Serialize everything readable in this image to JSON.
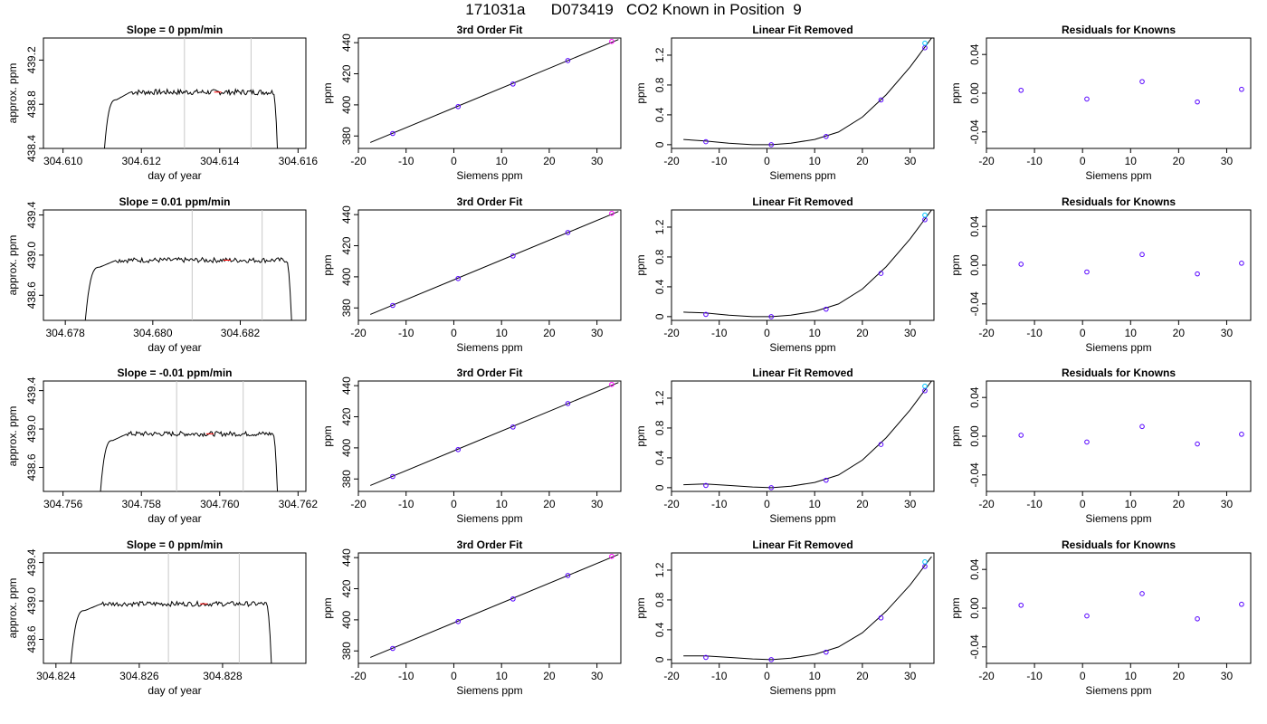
{
  "main_title": "171031a      D073419   CO2 Known in Position  9",
  "colors": {
    "curve": "#000000",
    "points": "#5500ff",
    "cyan": "#00c8ff",
    "magenta": "#ff00ff",
    "red": "#ff0000",
    "vline": "#c8c8c8"
  },
  "chart_data": [
    {
      "row": 0,
      "col": 0,
      "type": "line",
      "title": "Slope =  0  ppm/min",
      "xlabel": "day of year",
      "ylabel": "approx. ppm",
      "xlim": [
        304.6095,
        304.6162
      ],
      "ylim": [
        438.4,
        439.4
      ],
      "xticks": [
        304.61,
        304.612,
        304.614,
        304.616
      ],
      "xticklabels": [
        "304.610",
        "304.612",
        "304.614",
        "304.616"
      ],
      "yticks": [
        438.4,
        438.8,
        439.2
      ],
      "yticklabels": [
        "438.4",
        "438.8",
        "439.2"
      ],
      "vlines": [
        304.6131,
        304.6148
      ],
      "trace": {
        "x0": 304.611,
        "x1": 304.6155,
        "plateau": 438.91
      },
      "grid": false,
      "legend": "none"
    },
    {
      "row": 0,
      "col": 1,
      "type": "scatter",
      "title": "3rd Order Fit",
      "xlabel": "Siemens ppm",
      "ylabel": "ppm",
      "xlim": [
        -20,
        35
      ],
      "ylim": [
        372,
        443
      ],
      "xticks": [
        -20,
        -10,
        0,
        10,
        20,
        30
      ],
      "yticks": [
        380,
        400,
        420,
        440
      ],
      "points": {
        "x": [
          -12.8,
          0.9,
          12.4,
          23.9,
          33.1
        ],
        "y": [
          381.6,
          398.9,
          413.4,
          428.5,
          440.8
        ]
      },
      "fit_line": {
        "x": [
          -17.5,
          34.5
        ],
        "y": [
          375.8,
          442.0
        ]
      },
      "grid": false,
      "legend": "none"
    },
    {
      "row": 0,
      "col": 2,
      "type": "scatter",
      "title": "Linear Fit Removed",
      "xlabel": "Siemens ppm",
      "ylabel": "ppm",
      "xlim": [
        -20,
        35
      ],
      "ylim": [
        -0.05,
        1.43
      ],
      "xticks": [
        -20,
        -10,
        0,
        10,
        20,
        30
      ],
      "yticks": [
        0.0,
        0.4,
        0.8,
        1.2
      ],
      "points": {
        "x": [
          -12.8,
          0.9,
          12.4,
          23.9,
          33.1
        ],
        "y": [
          0.04,
          0.0,
          0.11,
          0.6,
          1.3
        ]
      },
      "fit_curve": {
        "x": [
          -17.5,
          -13,
          -8,
          -3,
          1,
          5,
          10,
          15,
          20,
          25,
          30,
          34.5
        ],
        "y": [
          0.07,
          0.05,
          0.02,
          0.0,
          0.0,
          0.02,
          0.07,
          0.17,
          0.37,
          0.67,
          1.04,
          1.43
        ]
      },
      "grid": false,
      "legend": "none"
    },
    {
      "row": 0,
      "col": 3,
      "type": "scatter",
      "title": "Residuals for Knowns",
      "xlabel": "Siemens ppm",
      "ylabel": "ppm",
      "xlim": [
        -20,
        35
      ],
      "ylim": [
        -0.057,
        0.057
      ],
      "xticks": [
        -20,
        -10,
        0,
        10,
        20,
        30
      ],
      "yticks": [
        -0.04,
        0.0,
        0.04
      ],
      "yticklabels": [
        "-0.04",
        "0.00",
        "0.04"
      ],
      "points": {
        "x": [
          -12.8,
          0.9,
          12.4,
          23.9,
          33.1
        ],
        "y": [
          0.003,
          -0.006,
          0.012,
          -0.009,
          0.004
        ]
      },
      "grid": false,
      "legend": "none"
    },
    {
      "row": 1,
      "col": 0,
      "type": "line",
      "title": "Slope =  0.01  ppm/min",
      "xlabel": "day of year",
      "ylabel": "approx. ppm",
      "xlim": [
        304.6775,
        304.6835
      ],
      "ylim": [
        438.35,
        439.45
      ],
      "xticks": [
        304.678,
        304.68,
        304.682
      ],
      "xticklabels": [
        "304.678",
        "304.680",
        "304.682"
      ],
      "yticks": [
        438.6,
        439.0,
        439.4
      ],
      "yticklabels": [
        "438.6",
        "439.0",
        "439.4"
      ],
      "vlines": [
        304.6809,
        304.6825
      ],
      "trace": {
        "x0": 304.6784,
        "x1": 304.6832,
        "plateau": 438.95
      },
      "grid": false,
      "legend": "none"
    },
    {
      "row": 1,
      "col": 1,
      "type": "scatter",
      "title": "3rd Order Fit",
      "xlabel": "Siemens ppm",
      "ylabel": "ppm",
      "xlim": [
        -20,
        35
      ],
      "ylim": [
        372,
        443
      ],
      "xticks": [
        -20,
        -10,
        0,
        10,
        20,
        30
      ],
      "yticks": [
        380,
        400,
        420,
        440
      ],
      "points": {
        "x": [
          -12.8,
          0.9,
          12.4,
          23.9,
          33.1
        ],
        "y": [
          381.6,
          398.9,
          413.4,
          428.5,
          440.8
        ]
      },
      "fit_line": {
        "x": [
          -17.5,
          34.5
        ],
        "y": [
          375.8,
          442.0
        ]
      },
      "grid": false,
      "legend": "none"
    },
    {
      "row": 1,
      "col": 2,
      "type": "scatter",
      "title": "Linear Fit Removed",
      "xlabel": "Siemens ppm",
      "ylabel": "ppm",
      "xlim": [
        -20,
        35
      ],
      "ylim": [
        -0.05,
        1.43
      ],
      "xticks": [
        -20,
        -10,
        0,
        10,
        20,
        30
      ],
      "yticks": [
        0.0,
        0.4,
        0.8,
        1.2
      ],
      "points": {
        "x": [
          -12.8,
          0.9,
          12.4,
          23.9,
          33.1
        ],
        "y": [
          0.03,
          0.0,
          0.1,
          0.58,
          1.3
        ]
      },
      "fit_curve": {
        "x": [
          -17.5,
          -13,
          -8,
          -3,
          1,
          5,
          10,
          15,
          20,
          25,
          30,
          34.5
        ],
        "y": [
          0.06,
          0.05,
          0.02,
          0.0,
          0.0,
          0.02,
          0.07,
          0.17,
          0.37,
          0.67,
          1.04,
          1.43
        ]
      },
      "grid": false,
      "legend": "none"
    },
    {
      "row": 1,
      "col": 3,
      "type": "scatter",
      "title": "Residuals for Knowns",
      "xlabel": "Siemens ppm",
      "ylabel": "ppm",
      "xlim": [
        -20,
        35
      ],
      "ylim": [
        -0.057,
        0.057
      ],
      "xticks": [
        -20,
        -10,
        0,
        10,
        20,
        30
      ],
      "yticks": [
        -0.04,
        0.0,
        0.04
      ],
      "yticklabels": [
        "-0.04",
        "0.00",
        "0.04"
      ],
      "points": {
        "x": [
          -12.8,
          0.9,
          12.4,
          23.9,
          33.1
        ],
        "y": [
          0.001,
          -0.007,
          0.011,
          -0.009,
          0.002
        ]
      },
      "grid": false,
      "legend": "none"
    },
    {
      "row": 2,
      "col": 0,
      "type": "line",
      "title": "Slope =  -0.01  ppm/min",
      "xlabel": "day of year",
      "ylabel": "approx. ppm",
      "xlim": [
        304.7555,
        304.7622
      ],
      "ylim": [
        438.35,
        439.5
      ],
      "xticks": [
        304.756,
        304.758,
        304.76,
        304.762
      ],
      "xticklabels": [
        "304.756",
        "304.758",
        "304.760",
        "304.762"
      ],
      "yticks": [
        438.6,
        439.0,
        439.4
      ],
      "yticklabels": [
        "438.6",
        "439.0",
        "439.4"
      ],
      "vlines": [
        304.7589,
        304.7606
      ],
      "trace": {
        "x0": 304.7569,
        "x1": 304.7615,
        "plateau": 438.95
      },
      "grid": false,
      "legend": "none"
    },
    {
      "row": 2,
      "col": 1,
      "type": "scatter",
      "title": "3rd Order Fit",
      "xlabel": "Siemens ppm",
      "ylabel": "ppm",
      "xlim": [
        -20,
        35
      ],
      "ylim": [
        372,
        443
      ],
      "xticks": [
        -20,
        -10,
        0,
        10,
        20,
        30
      ],
      "yticks": [
        380,
        400,
        420,
        440
      ],
      "points": {
        "x": [
          -12.8,
          0.9,
          12.4,
          23.9,
          33.1
        ],
        "y": [
          381.6,
          398.9,
          413.4,
          428.5,
          440.8
        ]
      },
      "fit_line": {
        "x": [
          -17.5,
          34.5
        ],
        "y": [
          375.8,
          442.0
        ]
      },
      "grid": false,
      "legend": "none"
    },
    {
      "row": 2,
      "col": 2,
      "type": "scatter",
      "title": "Linear Fit Removed",
      "xlabel": "Siemens ppm",
      "ylabel": "ppm",
      "xlim": [
        -20,
        35
      ],
      "ylim": [
        -0.05,
        1.43
      ],
      "xticks": [
        -20,
        -10,
        0,
        10,
        20,
        30
      ],
      "yticks": [
        0.0,
        0.4,
        0.8,
        1.2
      ],
      "points": {
        "x": [
          -12.8,
          0.9,
          12.4,
          23.9,
          33.1
        ],
        "y": [
          0.03,
          0.0,
          0.1,
          0.58,
          1.3
        ]
      },
      "fit_curve": {
        "x": [
          -17.5,
          -13,
          -8,
          -3,
          1,
          5,
          10,
          15,
          20,
          25,
          30,
          34.5
        ],
        "y": [
          0.04,
          0.05,
          0.03,
          0.01,
          0.0,
          0.02,
          0.07,
          0.17,
          0.37,
          0.67,
          1.04,
          1.43
        ]
      },
      "grid": false,
      "legend": "none"
    },
    {
      "row": 2,
      "col": 3,
      "type": "scatter",
      "title": "Residuals for Knowns",
      "xlabel": "Siemens ppm",
      "ylabel": "ppm",
      "xlim": [
        -20,
        35
      ],
      "ylim": [
        -0.057,
        0.057
      ],
      "xticks": [
        -20,
        -10,
        0,
        10,
        20,
        30
      ],
      "yticks": [
        -0.04,
        0.0,
        0.04
      ],
      "yticklabels": [
        "-0.04",
        "0.00",
        "0.04"
      ],
      "points": {
        "x": [
          -12.8,
          0.9,
          12.4,
          23.9,
          33.1
        ],
        "y": [
          0.001,
          -0.006,
          0.01,
          -0.008,
          0.002
        ]
      },
      "grid": false,
      "legend": "none"
    },
    {
      "row": 3,
      "col": 0,
      "type": "line",
      "title": "Slope =  0  ppm/min",
      "xlabel": "day of year",
      "ylabel": "approx. ppm",
      "xlim": [
        304.8237,
        304.83
      ],
      "ylim": [
        438.35,
        439.5
      ],
      "xticks": [
        304.824,
        304.826,
        304.828
      ],
      "xticklabels": [
        "304.824",
        "304.826",
        "304.828"
      ],
      "yticks": [
        438.6,
        439.0,
        439.4
      ],
      "yticklabels": [
        "438.6",
        "439.0",
        "439.4"
      ],
      "vlines": [
        304.8267,
        304.8284
      ],
      "trace": {
        "x0": 304.8243,
        "x1": 304.8292,
        "plateau": 438.97
      },
      "grid": false,
      "legend": "none"
    },
    {
      "row": 3,
      "col": 1,
      "type": "scatter",
      "title": "3rd Order Fit",
      "xlabel": "Siemens ppm",
      "ylabel": "ppm",
      "xlim": [
        -20,
        35
      ],
      "ylim": [
        372,
        443
      ],
      "xticks": [
        -20,
        -10,
        0,
        10,
        20,
        30
      ],
      "yticks": [
        380,
        400,
        420,
        440
      ],
      "points": {
        "x": [
          -12.8,
          0.9,
          12.4,
          23.9,
          33.1
        ],
        "y": [
          381.6,
          398.9,
          413.4,
          428.5,
          440.8
        ]
      },
      "fit_line": {
        "x": [
          -17.5,
          34.5
        ],
        "y": [
          375.8,
          442.0
        ]
      },
      "grid": false,
      "legend": "none"
    },
    {
      "row": 3,
      "col": 2,
      "type": "scatter",
      "title": "Linear Fit Removed",
      "xlabel": "Siemens ppm",
      "ylabel": "ppm",
      "xlim": [
        -20,
        35
      ],
      "ylim": [
        -0.05,
        1.43
      ],
      "xticks": [
        -20,
        -10,
        0,
        10,
        20,
        30
      ],
      "yticks": [
        0.0,
        0.4,
        0.8,
        1.2
      ],
      "points": {
        "x": [
          -12.8,
          0.9,
          12.4,
          23.9,
          33.1
        ],
        "y": [
          0.03,
          0.0,
          0.1,
          0.56,
          1.25
        ]
      },
      "fit_curve": {
        "x": [
          -17.5,
          -13,
          -8,
          -3,
          1,
          5,
          10,
          15,
          20,
          25,
          30,
          34.5
        ],
        "y": [
          0.05,
          0.05,
          0.03,
          0.01,
          0.0,
          0.02,
          0.07,
          0.17,
          0.36,
          0.65,
          1.0,
          1.38
        ]
      },
      "grid": false,
      "legend": "none"
    },
    {
      "row": 3,
      "col": 3,
      "type": "scatter",
      "title": "Residuals for Knowns",
      "xlabel": "Siemens ppm",
      "ylabel": "ppm",
      "xlim": [
        -20,
        35
      ],
      "ylim": [
        -0.057,
        0.057
      ],
      "xticks": [
        -20,
        -10,
        0,
        10,
        20,
        30
      ],
      "yticks": [
        -0.04,
        0.0,
        0.04
      ],
      "yticklabels": [
        "-0.04",
        "0.00",
        "0.04"
      ],
      "points": {
        "x": [
          -12.8,
          0.9,
          12.4,
          23.9,
          33.1
        ],
        "y": [
          0.003,
          -0.008,
          0.015,
          -0.011,
          0.004
        ]
      },
      "grid": false,
      "legend": "none"
    }
  ]
}
